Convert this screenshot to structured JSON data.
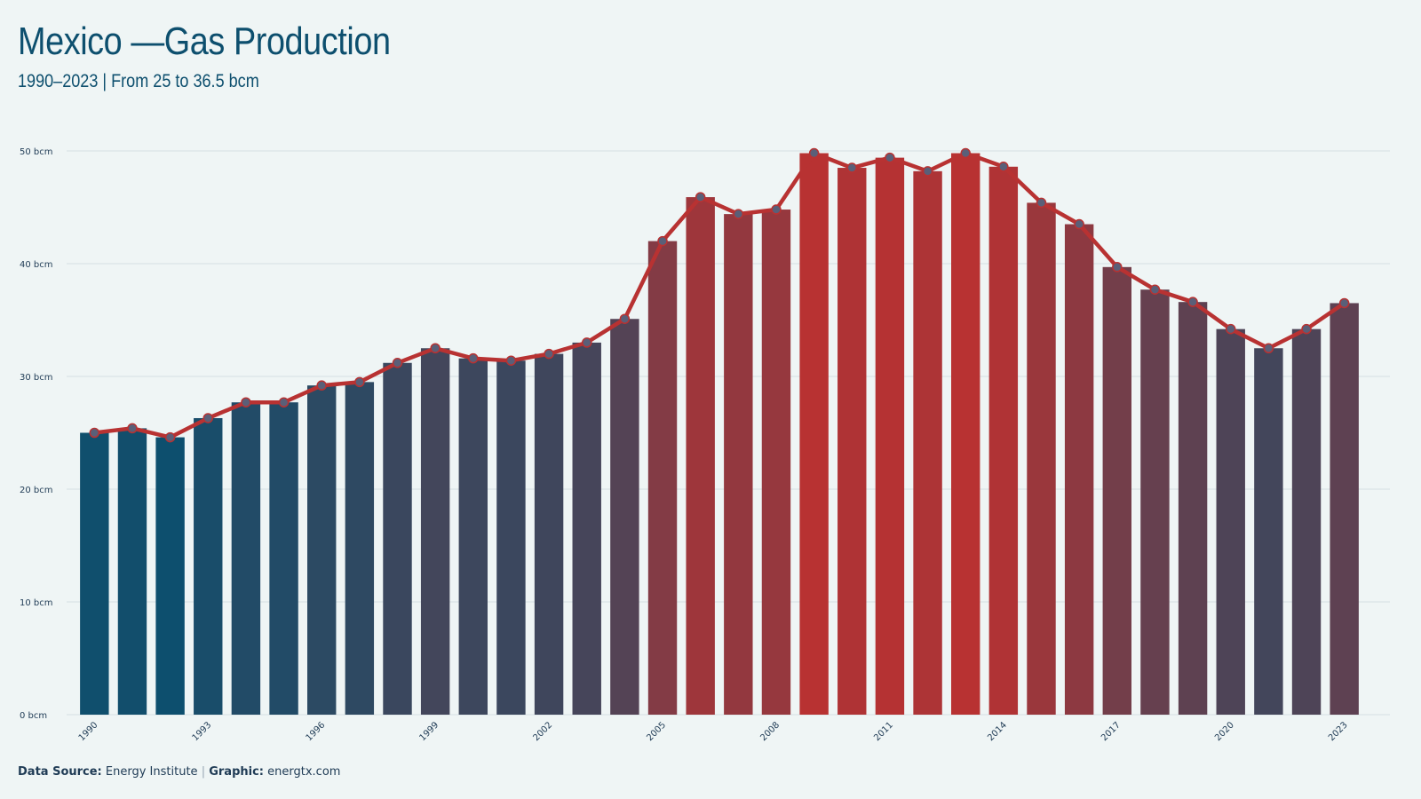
{
  "header": {
    "title": "Mexico —Gas Production",
    "subtitle": "1990–2023 | From 25 to 36.5 bcm"
  },
  "footer": {
    "source_label": "Data Source:",
    "source_value": "Energy Institute",
    "separator": "|",
    "graphic_label": "Graphic:",
    "graphic_value": "energtx.com"
  },
  "colors": {
    "low": "#0d4f6e",
    "high": "#b83232",
    "line": "#b83232",
    "marker_fill": "#5a5f78",
    "grid": "#d5e0e4",
    "background": "#eff5f5"
  },
  "chart_data": {
    "type": "bar",
    "title": "Mexico —Gas Production",
    "subtitle": "1990–2023 | From 25 to 36.5 bcm",
    "xlabel": "",
    "ylabel": "",
    "ylim": [
      0,
      50
    ],
    "yticks": [
      0,
      10,
      20,
      30,
      40,
      50
    ],
    "ytick_labels": [
      "0 bcm",
      "10 bcm",
      "20 bcm",
      "30 bcm",
      "40 bcm",
      "50 bcm"
    ],
    "xtick_labels": [
      "1990",
      "1993",
      "1996",
      "1999",
      "2002",
      "2005",
      "2008",
      "2011",
      "2014",
      "2017",
      "2020",
      "2023"
    ],
    "grid": true,
    "legend": "none",
    "overlay": "line with markers over bars, same values",
    "categories": [
      1990,
      1991,
      1992,
      1993,
      1994,
      1995,
      1996,
      1997,
      1998,
      1999,
      2000,
      2001,
      2002,
      2003,
      2004,
      2005,
      2006,
      2007,
      2008,
      2009,
      2010,
      2011,
      2012,
      2013,
      2014,
      2015,
      2016,
      2017,
      2018,
      2019,
      2020,
      2021,
      2022,
      2023
    ],
    "values": [
      25.0,
      25.4,
      24.6,
      26.3,
      27.7,
      27.7,
      29.2,
      29.5,
      31.2,
      32.5,
      31.6,
      31.4,
      32.0,
      33.0,
      35.1,
      42.0,
      45.9,
      44.4,
      44.8,
      49.8,
      48.5,
      49.4,
      48.2,
      49.8,
      48.6,
      45.4,
      43.5,
      39.7,
      37.7,
      36.6,
      34.2,
      32.5,
      34.2,
      36.5
    ]
  }
}
